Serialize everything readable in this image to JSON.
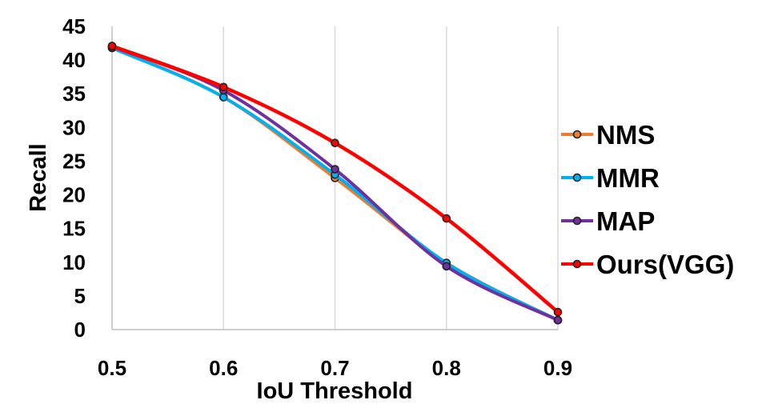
{
  "chart_data": {
    "type": "line",
    "title": "",
    "xlabel": "IoU Threshold",
    "ylabel": "Recall",
    "x": [
      0.5,
      0.6,
      0.7,
      0.8,
      0.9
    ],
    "x_tick_labels": [
      "0.5",
      "0.6",
      "0.7",
      "0.8",
      "0.9"
    ],
    "y_ticks": [
      0,
      5,
      10,
      15,
      20,
      25,
      30,
      35,
      40,
      45
    ],
    "ylim": [
      0,
      45
    ],
    "grid": "vertical",
    "legend_position": "right",
    "series": [
      {
        "name": "NMS",
        "color": "#ed7d31",
        "values": [
          41.8,
          34.5,
          22.5,
          9.9,
          1.4
        ]
      },
      {
        "name": "MMR",
        "color": "#00b0f0",
        "values": [
          41.8,
          34.5,
          23.0,
          9.9,
          1.4
        ]
      },
      {
        "name": "MAP",
        "color": "#7030a0",
        "values": [
          42.0,
          35.5,
          23.8,
          9.4,
          1.4
        ]
      },
      {
        "name": "Ours(VGG)",
        "color": "#ff0000",
        "values": [
          42.1,
          36.0,
          27.7,
          16.5,
          2.6
        ]
      }
    ]
  }
}
